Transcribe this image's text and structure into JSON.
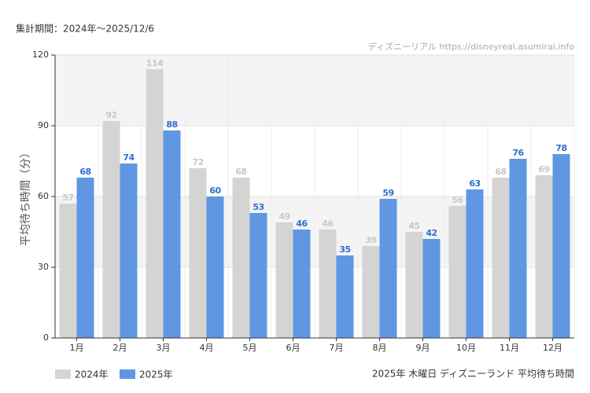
{
  "chart_data": {
    "type": "bar",
    "period_note": "集計期間：2024年～2025/12/6",
    "source": "ディズニーリアル https://disneyreal.asumirai.info",
    "ylabel": "平均待ち時間（分）",
    "footer_note": "2025年 木曜日 ディズニーランド 平均待ち時間",
    "categories": [
      "1月",
      "2月",
      "3月",
      "4月",
      "5月",
      "6月",
      "7月",
      "8月",
      "9月",
      "10月",
      "11月",
      "12月"
    ],
    "series": [
      {
        "name": "2024年",
        "color": "#d4d4d2",
        "label_color": "#c8c8c8",
        "values": [
          57,
          92,
          114,
          72,
          68,
          49,
          46,
          39,
          45,
          56,
          68,
          69
        ]
      },
      {
        "name": "2025年",
        "color": "#5f97e3",
        "label_color": "#2e6fcf",
        "values": [
          68,
          74,
          88,
          60,
          53,
          46,
          35,
          59,
          42,
          63,
          76,
          78
        ]
      }
    ],
    "ylim": [
      0,
      120
    ],
    "yticks": [
      0,
      30,
      60,
      90,
      120
    ],
    "grid": true
  }
}
